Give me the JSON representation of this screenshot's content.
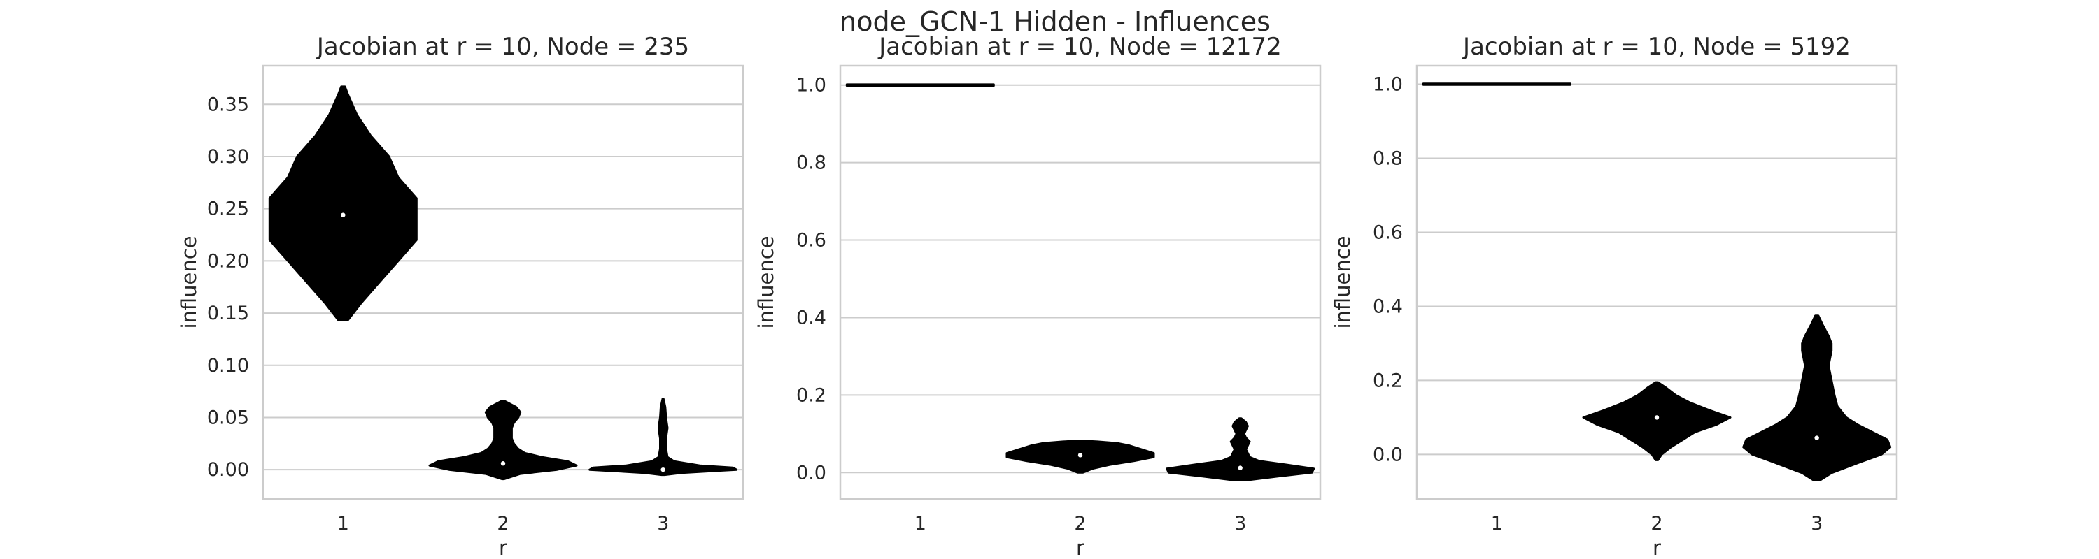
{
  "figure": {
    "suptitle": "node_GCN-1 Hidden - Influences"
  },
  "colors": {
    "violin": "#000000",
    "median": "#ffffff",
    "grid": "#cccccc",
    "frame": "#cccccc",
    "text": "#262626"
  },
  "chart_data": [
    {
      "type": "violin",
      "title": "Jacobian at r = 10, Node = 235",
      "xlabel": "r",
      "ylabel": "influence",
      "categories": [
        "1",
        "2",
        "3"
      ],
      "ylim": [
        -0.028,
        0.387
      ],
      "yticks": [
        0.0,
        0.05,
        0.1,
        0.15,
        0.2,
        0.25,
        0.3,
        0.35
      ],
      "ytick_labels": [
        "0.00",
        "0.05",
        "0.10",
        "0.15",
        "0.20",
        "0.25",
        "0.30",
        "0.35"
      ],
      "grid": true,
      "violins": [
        {
          "category": "1",
          "min": 0.143,
          "max": 0.367,
          "median": 0.244,
          "profile": [
            [
              0.143,
              0.0005
            ],
            [
              0.16,
              0.002
            ],
            [
              0.18,
              0.004
            ],
            [
              0.2,
              0.006
            ],
            [
              0.22,
              0.008
            ],
            [
              0.24,
              0.008
            ],
            [
              0.26,
              0.008
            ],
            [
              0.28,
              0.006
            ],
            [
              0.3,
              0.005
            ],
            [
              0.32,
              0.003
            ],
            [
              0.34,
              0.0015
            ],
            [
              0.36,
              0.0005
            ],
            [
              0.367,
              0.0002
            ]
          ]
        },
        {
          "category": "2",
          "min": -0.009,
          "max": 0.066,
          "median": 0.006,
          "profile": [
            [
              -0.009,
              0.0005
            ],
            [
              -0.004,
              0.008
            ],
            [
              0.0,
              0.025
            ],
            [
              0.004,
              0.034
            ],
            [
              0.008,
              0.03
            ],
            [
              0.012,
              0.018
            ],
            [
              0.016,
              0.01
            ],
            [
              0.02,
              0.007
            ],
            [
              0.025,
              0.005
            ],
            [
              0.03,
              0.004
            ],
            [
              0.035,
              0.004
            ],
            [
              0.04,
              0.004
            ],
            [
              0.045,
              0.005
            ],
            [
              0.05,
              0.007
            ],
            [
              0.055,
              0.008
            ],
            [
              0.06,
              0.006
            ],
            [
              0.066,
              0.0005
            ]
          ]
        },
        {
          "category": "3",
          "min": -0.005,
          "max": 0.068,
          "median": 0.0,
          "profile": [
            [
              -0.005,
              0.002
            ],
            [
              -0.003,
              0.025
            ],
            [
              0.0,
              0.1
            ],
            [
              0.002,
              0.095
            ],
            [
              0.004,
              0.05
            ],
            [
              0.008,
              0.015
            ],
            [
              0.012,
              0.006
            ],
            [
              0.02,
              0.004
            ],
            [
              0.03,
              0.004
            ],
            [
              0.035,
              0.005
            ],
            [
              0.04,
              0.006
            ],
            [
              0.045,
              0.005
            ],
            [
              0.05,
              0.004
            ],
            [
              0.06,
              0.003
            ],
            [
              0.068,
              0.0005
            ]
          ]
        }
      ]
    },
    {
      "type": "violin",
      "title": "Jacobian at r = 10, Node = 12172",
      "xlabel": "r",
      "ylabel": "influence",
      "categories": [
        "1",
        "2",
        "3"
      ],
      "ylim": [
        -0.068,
        1.05
      ],
      "yticks": [
        0.0,
        0.2,
        0.4,
        0.6,
        0.8,
        1.0
      ],
      "ytick_labels": [
        "0.0",
        "0.2",
        "0.4",
        "0.6",
        "0.8",
        "1.0"
      ],
      "grid": true,
      "violins": [
        {
          "category": "1",
          "min": 1.0,
          "max": 1.0,
          "median": 1.0,
          "profile": [
            [
              0.9985,
              0.4
            ],
            [
              1.0015,
              0.4
            ]
          ]
        },
        {
          "category": "2",
          "min": 0.0,
          "max": 0.082,
          "median": 0.045,
          "profile": [
            [
              0.0,
              0.01
            ],
            [
              0.01,
              0.05
            ],
            [
              0.02,
              0.12
            ],
            [
              0.03,
              0.22
            ],
            [
              0.04,
              0.3
            ],
            [
              0.05,
              0.3
            ],
            [
              0.06,
              0.25
            ],
            [
              0.07,
              0.2
            ],
            [
              0.076,
              0.15
            ],
            [
              0.08,
              0.07
            ],
            [
              0.082,
              0.01
            ]
          ]
        },
        {
          "category": "3",
          "min": -0.02,
          "max": 0.14,
          "median": 0.012,
          "profile": [
            [
              -0.02,
              0.03
            ],
            [
              -0.01,
              0.2
            ],
            [
              0.0,
              0.38
            ],
            [
              0.01,
              0.39
            ],
            [
              0.02,
              0.25
            ],
            [
              0.03,
              0.1
            ],
            [
              0.04,
              0.05
            ],
            [
              0.05,
              0.04
            ],
            [
              0.06,
              0.03
            ],
            [
              0.07,
              0.04
            ],
            [
              0.08,
              0.05
            ],
            [
              0.09,
              0.03
            ],
            [
              0.1,
              0.02
            ],
            [
              0.11,
              0.03
            ],
            [
              0.12,
              0.04
            ],
            [
              0.13,
              0.03
            ],
            [
              0.14,
              0.005
            ]
          ]
        }
      ]
    },
    {
      "type": "violin",
      "title": "Jacobian at r = 10, Node = 5192",
      "xlabel": "r",
      "ylabel": "influence",
      "categories": [
        "1",
        "2",
        "3"
      ],
      "ylim": [
        -0.12,
        1.05
      ],
      "yticks": [
        0.0,
        0.2,
        0.4,
        0.6,
        0.8,
        1.0
      ],
      "ytick_labels": [
        "0.0",
        "0.2",
        "0.4",
        "0.6",
        "0.8",
        "1.0"
      ],
      "grid": true,
      "violins": [
        {
          "category": "1",
          "min": 1.0,
          "max": 1.0,
          "median": 1.0,
          "profile": [
            [
              0.9985,
              0.4
            ],
            [
              1.0015,
              0.4
            ]
          ]
        },
        {
          "category": "2",
          "min": -0.015,
          "max": 0.195,
          "median": 0.1,
          "profile": [
            [
              -0.015,
              0.005
            ],
            [
              0.0,
              0.02
            ],
            [
              0.02,
              0.06
            ],
            [
              0.04,
              0.11
            ],
            [
              0.06,
              0.16
            ],
            [
              0.08,
              0.25
            ],
            [
              0.1,
              0.31
            ],
            [
              0.12,
              0.22
            ],
            [
              0.14,
              0.14
            ],
            [
              0.16,
              0.08
            ],
            [
              0.18,
              0.04
            ],
            [
              0.195,
              0.005
            ]
          ]
        },
        {
          "category": "3",
          "min": -0.07,
          "max": 0.375,
          "median": 0.045,
          "profile": [
            [
              -0.07,
              0.01
            ],
            [
              -0.05,
              0.05
            ],
            [
              -0.02,
              0.15
            ],
            [
              0.0,
              0.22
            ],
            [
              0.02,
              0.25
            ],
            [
              0.04,
              0.24
            ],
            [
              0.06,
              0.19
            ],
            [
              0.08,
              0.14
            ],
            [
              0.1,
              0.1
            ],
            [
              0.13,
              0.07
            ],
            [
              0.16,
              0.06
            ],
            [
              0.2,
              0.05
            ],
            [
              0.24,
              0.04
            ],
            [
              0.28,
              0.05
            ],
            [
              0.3,
              0.05
            ],
            [
              0.32,
              0.04
            ],
            [
              0.35,
              0.02
            ],
            [
              0.375,
              0.005
            ]
          ]
        }
      ]
    }
  ]
}
